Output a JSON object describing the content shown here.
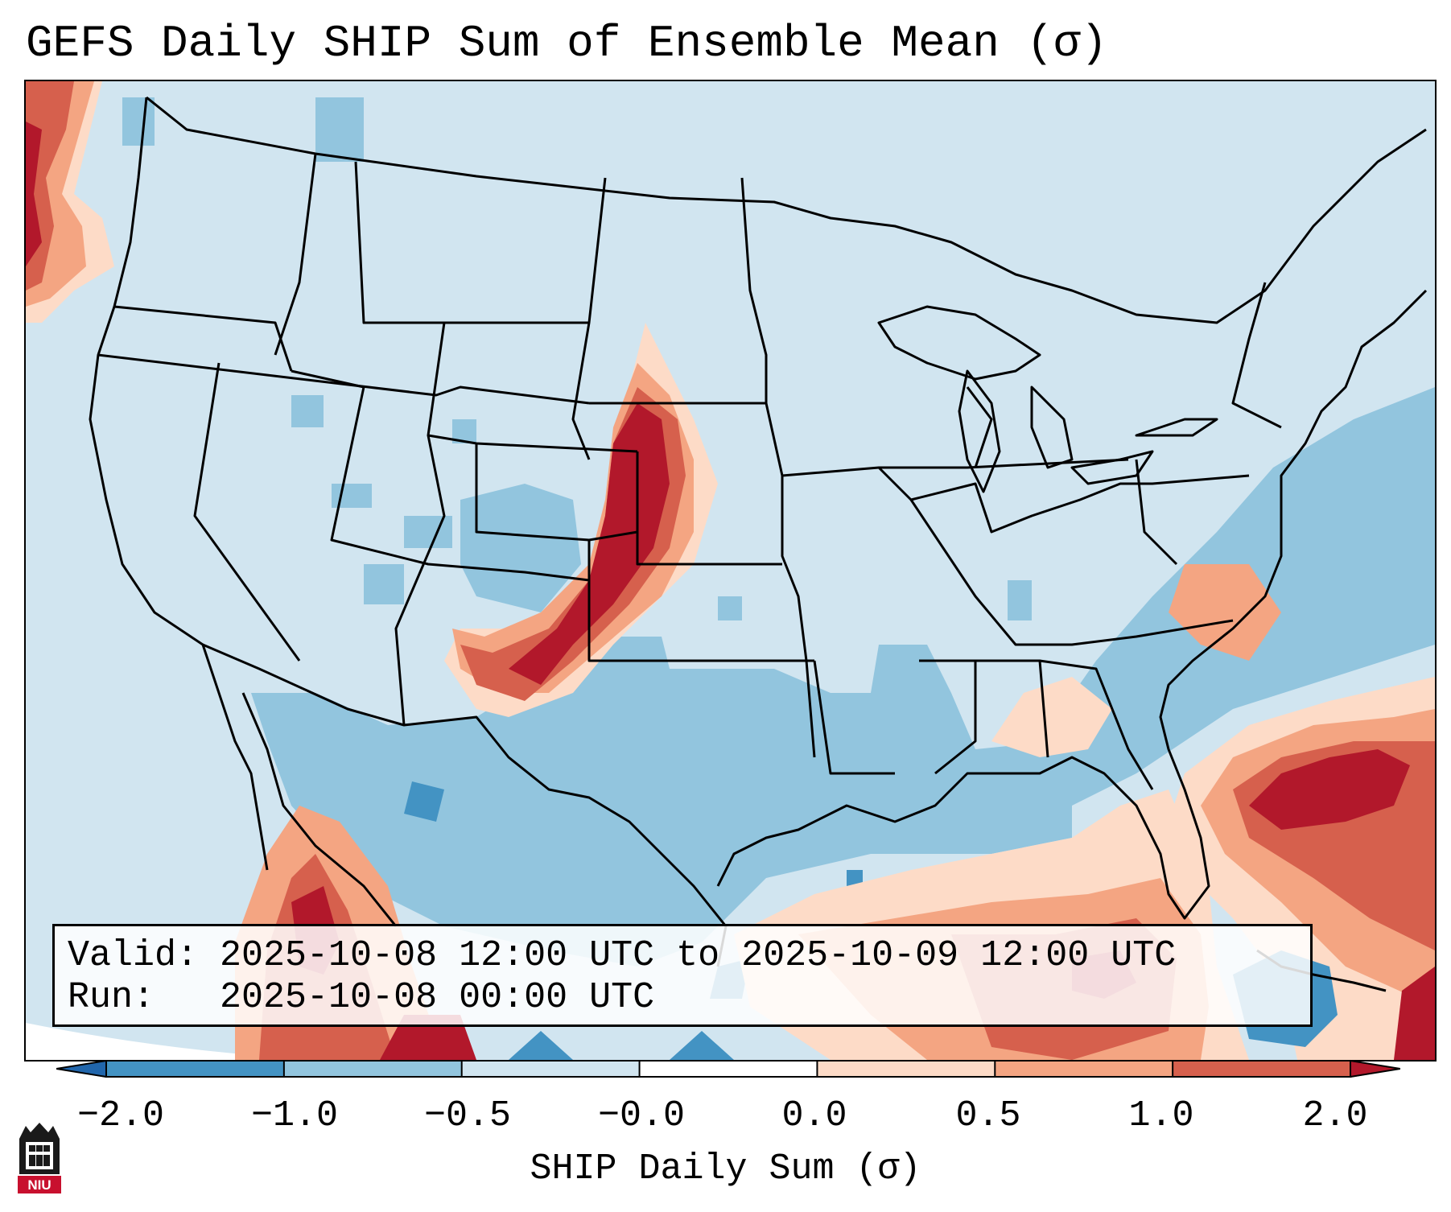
{
  "title": "GEFS Daily SHIP Sum of Ensemble Mean (σ)",
  "info": {
    "valid_line": "Valid: 2025-10-08 12:00 UTC to 2025-10-09 12:00 UTC",
    "run_line": "Run:   2025-10-08 00:00 UTC"
  },
  "colorbar": {
    "label": "SHIP Daily Sum (σ)",
    "ticks": [
      "−2.0",
      "−1.0",
      "−0.5",
      "−0.0",
      "0.0",
      "0.5",
      "1.0",
      "2.0"
    ],
    "colors": [
      "#2166ac",
      "#4393c3",
      "#92c5de",
      "#d1e5f0",
      "#fddbc7",
      "#f4a582",
      "#d6604d",
      "#b2182b"
    ],
    "extend": "both"
  },
  "map": {
    "region": "Contiguous United States",
    "field": "SHIP daily sum anomaly (sigma)"
  },
  "logo": {
    "text": "NIU"
  }
}
